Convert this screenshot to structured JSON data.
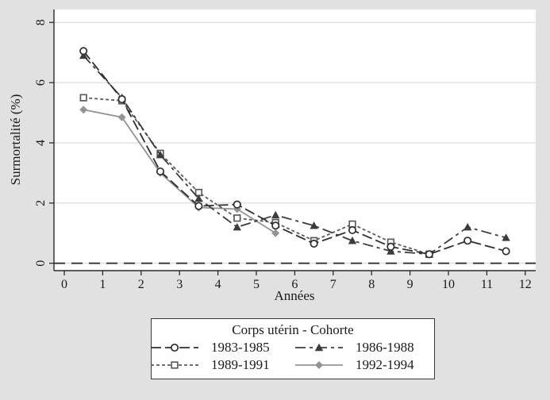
{
  "figure": {
    "background_color": "#e1e1e1",
    "plot_background_color": "#ffffff",
    "grid_color": "#dcdcdc",
    "axis_color": "#2b2b2b",
    "text_color": "#1a1a1a"
  },
  "axes": {
    "x": {
      "label": "Années",
      "ticks": [
        0,
        1,
        2,
        3,
        4,
        5,
        6,
        7,
        8,
        9,
        10,
        11,
        12
      ]
    },
    "y": {
      "label": "Surmortalité (%)",
      "ticks": [
        0,
        2,
        4,
        6,
        8
      ]
    }
  },
  "legend": {
    "title": "Corps utérin - Cohorte",
    "items": [
      {
        "label": "1983-1985"
      },
      {
        "label": "1986-1988"
      },
      {
        "label": "1989-1991"
      },
      {
        "label": "1992-1994"
      }
    ]
  },
  "chart_data": {
    "type": "line",
    "title": "",
    "xlabel": "Années",
    "ylabel": "Surmortalité (%)",
    "xlim": [
      -0.3,
      12.35
    ],
    "ylim": [
      0,
      8.4
    ],
    "grid": "horizontal",
    "legend_position": "bottom",
    "baseline": {
      "y": 0,
      "style": "dashed"
    },
    "x": [
      0.5,
      1.5,
      2.5,
      3.5,
      4.5,
      5.5,
      6.5,
      7.5,
      8.5,
      9.5,
      10.5,
      11.5
    ],
    "series": [
      {
        "name": "1983-1985",
        "marker": "circle-open",
        "color": "#2e2e2e",
        "dash": "13,5",
        "values": [
          7.05,
          5.45,
          3.05,
          1.9,
          1.95,
          1.25,
          0.65,
          1.1,
          0.55,
          0.3,
          0.75,
          0.4
        ]
      },
      {
        "name": "1986-1988",
        "marker": "triangle-filled",
        "color": "#3c3c3c",
        "dash": "13,5,4,5",
        "values": [
          6.9,
          5.5,
          3.6,
          2.15,
          1.2,
          1.6,
          1.25,
          0.75,
          0.4,
          0.3,
          1.2,
          0.85
        ]
      },
      {
        "name": "1989-1991",
        "marker": "square-open",
        "color": "#5b5b5b",
        "dash": "4,3",
        "values": [
          5.5,
          5.4,
          3.65,
          2.35,
          1.5,
          1.35,
          0.75,
          1.3,
          0.7,
          0.3,
          null,
          null
        ]
      },
      {
        "name": "1992-1994",
        "marker": "diamond-filled",
        "color": "#949494",
        "dash": "",
        "values": [
          5.1,
          4.85,
          3.0,
          1.85,
          1.8,
          1.0,
          null,
          null,
          null,
          null,
          null,
          null
        ]
      }
    ]
  }
}
